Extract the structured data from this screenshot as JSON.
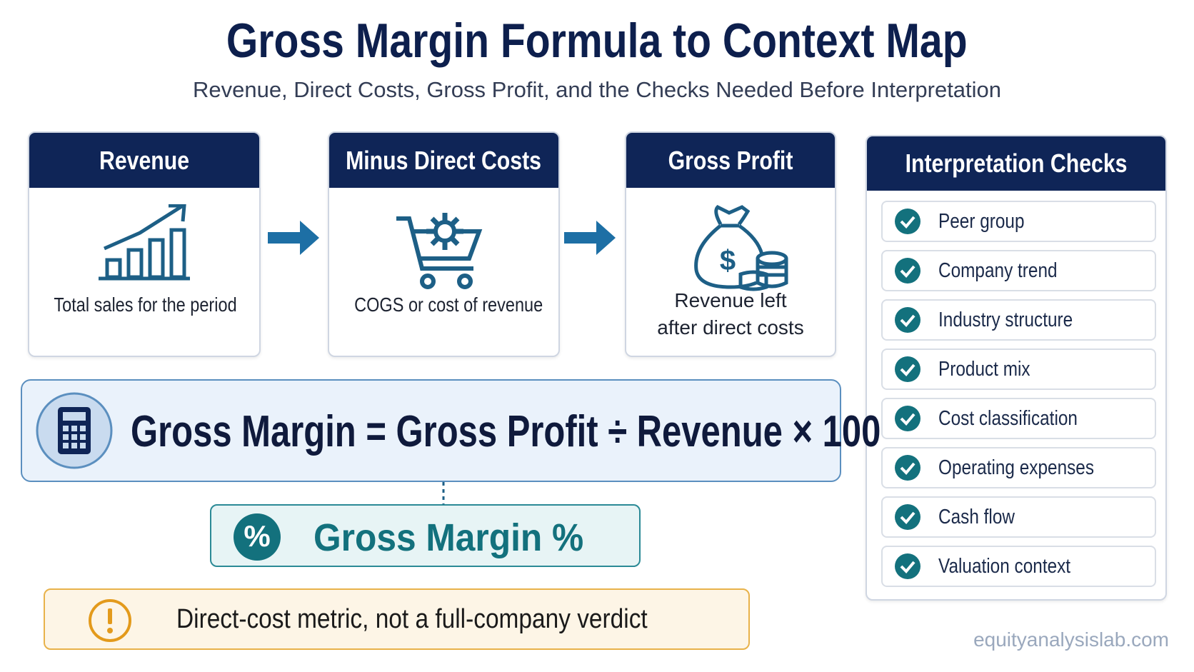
{
  "header": {
    "title": "Gross Margin Formula to Context Map",
    "subtitle": "Revenue, Direct Costs, Gross Profit, and the Checks Needed Before Interpretation"
  },
  "steps": [
    {
      "title": "Revenue",
      "text": "Total sales for the period"
    },
    {
      "title": "Minus Direct Costs",
      "text": "COGS or cost of revenue"
    },
    {
      "title": "Gross Profit",
      "text": "Revenue left after direct costs"
    }
  ],
  "formula": {
    "text": "Gross Margin = Gross Profit ÷ Revenue × 100"
  },
  "result": {
    "label": "Gross Margin %"
  },
  "note": {
    "text": "Direct-cost metric, not a full-company verdict"
  },
  "checks": {
    "title": "Interpretation Checks",
    "items": [
      "Peer group",
      "Company trend",
      "Industry structure",
      "Product mix",
      "Cost classification",
      "Operating expenses",
      "Cash flow",
      "Valuation context"
    ]
  },
  "footer": {
    "source": "equityanalysislab.com"
  }
}
